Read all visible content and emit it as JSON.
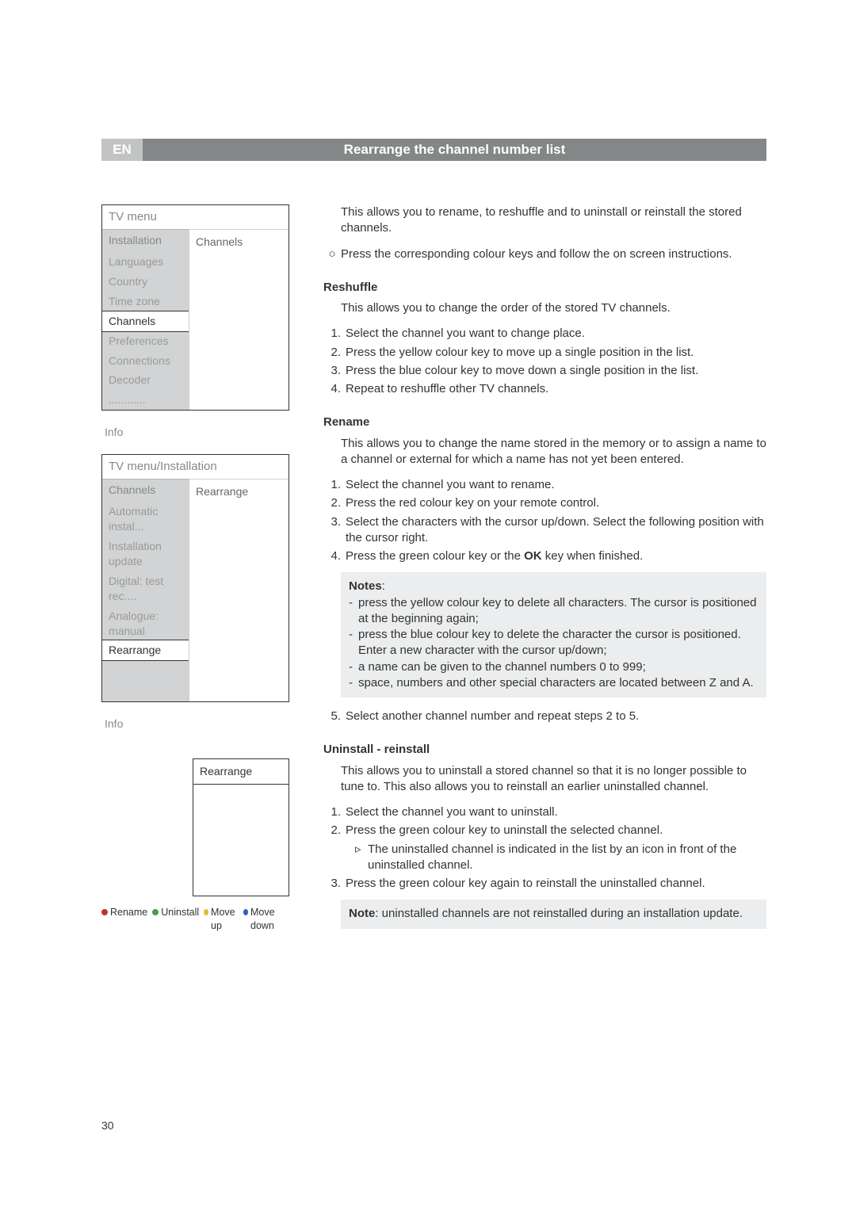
{
  "page": {
    "lang_code": "EN",
    "title": "Rearrange the channel number list",
    "page_number": "30"
  },
  "colors": {
    "red": "#c03030",
    "green": "#40a050",
    "yellow": "#d8c030",
    "blue": "#3060c0"
  },
  "menu1": {
    "title": "TV menu",
    "sub_left": "Installation",
    "sub_right": "Channels",
    "items": [
      "Languages",
      "Country",
      "Time zone",
      "Channels",
      "Preferences",
      "Connections",
      "Decoder",
      "............"
    ],
    "selected": "Channels",
    "footer": "Info"
  },
  "menu2": {
    "title": "TV menu/Installation",
    "sub_left": "Channels",
    "sub_right": "Rearrange",
    "items": [
      "Automatic instal...",
      "Installation update",
      "Digital: test rec....",
      "Analogue: manual",
      "Rearrange"
    ],
    "selected": "Rearrange",
    "footer": "Info"
  },
  "rearrange_box": {
    "title": "Rearrange"
  },
  "color_buttons": {
    "b1": "Rename",
    "b2": "Uninstall",
    "b3": "Move up",
    "b4": "Move down"
  },
  "intro": {
    "p1": "This allows you to rename, to reshuffle and to uninstall or reinstall the stored channels.",
    "p2": "Press the corresponding colour keys and follow the on screen instructions."
  },
  "reshuffle": {
    "heading": "Reshuffle",
    "intro": "This allows you to change the order of the stored TV channels.",
    "s1": "Select the channel you want to change place.",
    "s2": "Press the yellow colour key  to move up a single position in the list.",
    "s3": "Press the blue colour key to move down a single position in the list.",
    "s4": "Repeat to reshuffle other TV channels."
  },
  "rename": {
    "heading": "Rename",
    "intro": "This allows you to change the name stored in the memory or to assign a name to a channel or external for which a name has not yet been entered.",
    "s1": "Select the channel you want to rename.",
    "s2": "Press the red colour key on your remote control.",
    "s3": "Select the characters with the cursor up/down. Select the following position with the cursor right.",
    "s4a": "Press the green colour key or the ",
    "s4b": "OK",
    "s4c": " key when finished.",
    "notes_label": "Notes",
    "n1": "press the yellow colour key to delete all characters. The cursor is positioned at the beginning again;",
    "n2": "press the blue colour key to delete the character the cursor is positioned. Enter a new character with the cursor up/down;",
    "n3": "a name can be given to the channel numbers 0 to 999;",
    "n4": "space, numbers and other special characters are located between Z and A.",
    "s5": "Select another channel number and repeat steps 2 to 5."
  },
  "uninstall": {
    "heading": "Uninstall - reinstall",
    "intro": "This allows you to uninstall a stored channel so that it is no longer possible to tune to. This also allows you to reinstall an earlier uninstalled channel.",
    "s1": "Select the channel you want to uninstall.",
    "s2": "Press the green colour key to uninstall the selected channel.",
    "s2sub": "The uninstalled channel is indicated in the list by an icon in front of the uninstalled channel.",
    "s3": "Press the green colour key again to reinstall the uninstalled channel.",
    "note_label": "Note",
    "note": ": uninstalled channels are not reinstalled during an installation update."
  }
}
